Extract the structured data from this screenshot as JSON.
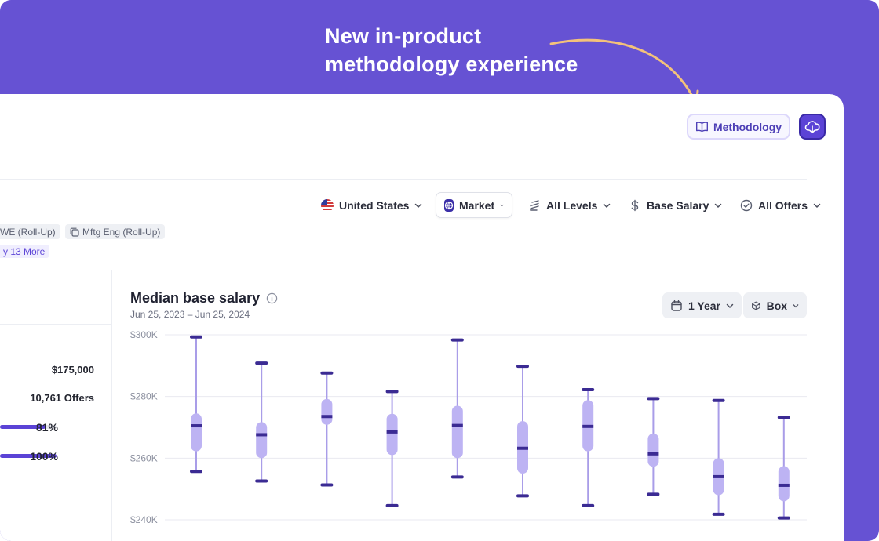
{
  "banner": {
    "headline_line1": "New in-product",
    "headline_line2": "methodology experience",
    "bg_color": "#6652d3",
    "arrow_color": "#f4c27a"
  },
  "header": {
    "methodology_label": "Methodology",
    "methodology_icon": "book-open-icon",
    "download_icon": "cloud-download-icon"
  },
  "filters": [
    {
      "label": "United States",
      "icon": "us-flag-icon"
    },
    {
      "label": "Market",
      "icon": "globe-icon"
    },
    {
      "label": "All Levels",
      "icon": "stack-icon"
    },
    {
      "label": "Base Salary",
      "icon": "dollar-icon"
    },
    {
      "label": "All Offers",
      "icon": "check-circle-icon"
    }
  ],
  "chips": [
    {
      "label": "WE (Roll-Up)"
    },
    {
      "label": "Mftg Eng (Roll-Up)"
    }
  ],
  "more_chip": "y 13 More",
  "sidebar_stats": {
    "salary": "$175,000",
    "offers": "10,761 Offers",
    "pct1": "81%",
    "pct1_value": 0.81,
    "pct2": "100%",
    "pct2_value": 1.0
  },
  "chart": {
    "title": "Median base salary",
    "subtitle": "Jun 25, 2023 – Jun 25, 2024",
    "range_label": "1 Year",
    "type_label": "Box",
    "accent": "#5b43d6",
    "box_color": "#bdb3f3",
    "whisker_color": "#a99de8",
    "median_color": "#3b2b93"
  },
  "chart_data": {
    "type": "box",
    "title": "Median base salary",
    "y_tick_labels": [
      "$300K",
      "$280K",
      "$260K",
      "$240K"
    ],
    "y_ticks": [
      300000,
      280000,
      260000,
      240000
    ],
    "ylim": [
      240000,
      300000
    ],
    "boxes": [
      {
        "min": 255700,
        "q1": 262200,
        "median": 270500,
        "q3": 274500,
        "max": 299300
      },
      {
        "min": 252600,
        "q1": 260000,
        "median": 267600,
        "q3": 271700,
        "max": 290800
      },
      {
        "min": 251300,
        "q1": 270800,
        "median": 273500,
        "q3": 279200,
        "max": 287600
      },
      {
        "min": 244600,
        "q1": 261000,
        "median": 268500,
        "q3": 274400,
        "max": 281600
      },
      {
        "min": 253900,
        "q1": 260000,
        "median": 270600,
        "q3": 277000,
        "max": 298300
      },
      {
        "min": 247800,
        "q1": 255000,
        "median": 263200,
        "q3": 272000,
        "max": 289800
      },
      {
        "min": 244600,
        "q1": 262200,
        "median": 270300,
        "q3": 278800,
        "max": 282200
      },
      {
        "min": 248300,
        "q1": 257200,
        "median": 261400,
        "q3": 268000,
        "max": 279300
      },
      {
        "min": 241800,
        "q1": 248000,
        "median": 254000,
        "q3": 260000,
        "max": 278700
      },
      {
        "min": 240600,
        "q1": 246000,
        "median": 251200,
        "q3": 257400,
        "max": 273200
      }
    ]
  }
}
